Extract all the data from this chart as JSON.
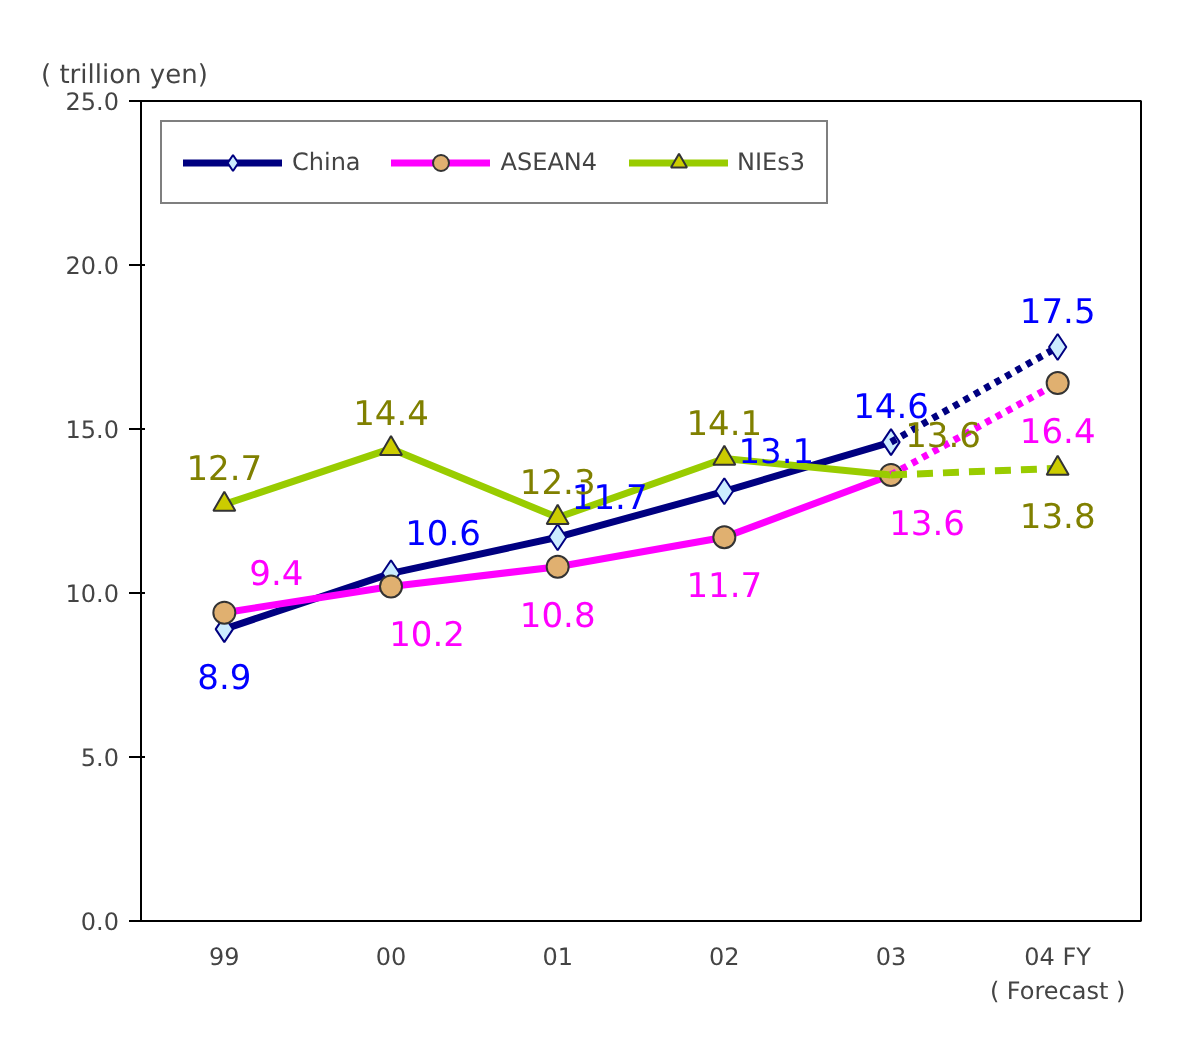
{
  "chart_data": {
    "type": "line",
    "ylabel": "( trillion yen)",
    "categories": [
      "99",
      "00",
      "01",
      "02",
      "03",
      "04 FY\n( Forecast )"
    ],
    "ylim": [
      0,
      25
    ],
    "yticks": [
      {
        "value": 0,
        "label": "0.0"
      },
      {
        "value": 5,
        "label": "5.0"
      },
      {
        "value": 10,
        "label": "10.0"
      },
      {
        "value": 15,
        "label": "15.0"
      },
      {
        "value": 20,
        "label": "20.0"
      },
      {
        "value": 25,
        "label": "25.0"
      }
    ],
    "grid": false,
    "legend": "top left",
    "line_style": "solid",
    "series": [
      {
        "name": "China",
        "color": "#000080",
        "marker": "diamond",
        "values": [
          8.9,
          10.6,
          11.7,
          13.1,
          14.6,
          null
        ],
        "value_labels": [
          "8.9",
          "10.6",
          "11.7",
          "13.1",
          "14.6",
          null
        ]
      },
      {
        "name": "ASEAN4",
        "color": "#ff00ff",
        "marker": "circle",
        "values": [
          9.4,
          10.2,
          10.8,
          11.7,
          13.6,
          null
        ],
        "value_labels": [
          "9.4",
          "10.2",
          "10.8",
          "11.7",
          "13.6",
          null
        ]
      },
      {
        "name": "NIEs3",
        "color": "#99cc00",
        "marker": "triangle",
        "values": [
          12.7,
          14.4,
          12.3,
          14.1,
          13.6,
          null
        ],
        "value_labels": [
          "12.7",
          "14.4",
          "12.3",
          "14.1",
          "13.6",
          null
        ]
      },
      {
        "color": "#000080",
        "marker": "diamond",
        "line_style": "dotted",
        "values": [
          null,
          null,
          null,
          null,
          14.6,
          17.5
        ],
        "value_labels": [
          null,
          null,
          null,
          null,
          null,
          "17.5"
        ]
      },
      {
        "color": "#ff00ff",
        "marker": "circle",
        "line_style": "dotted",
        "values": [
          null,
          null,
          null,
          null,
          13.6,
          16.4
        ],
        "value_labels": [
          null,
          null,
          null,
          null,
          null,
          "16.4"
        ]
      },
      {
        "color": "#99cc00",
        "marker": "triangle",
        "line_style": "dashed",
        "values": [
          null,
          null,
          null,
          null,
          13.6,
          13.8
        ],
        "value_labels": [
          null,
          null,
          null,
          null,
          null,
          "13.8"
        ]
      }
    ]
  }
}
